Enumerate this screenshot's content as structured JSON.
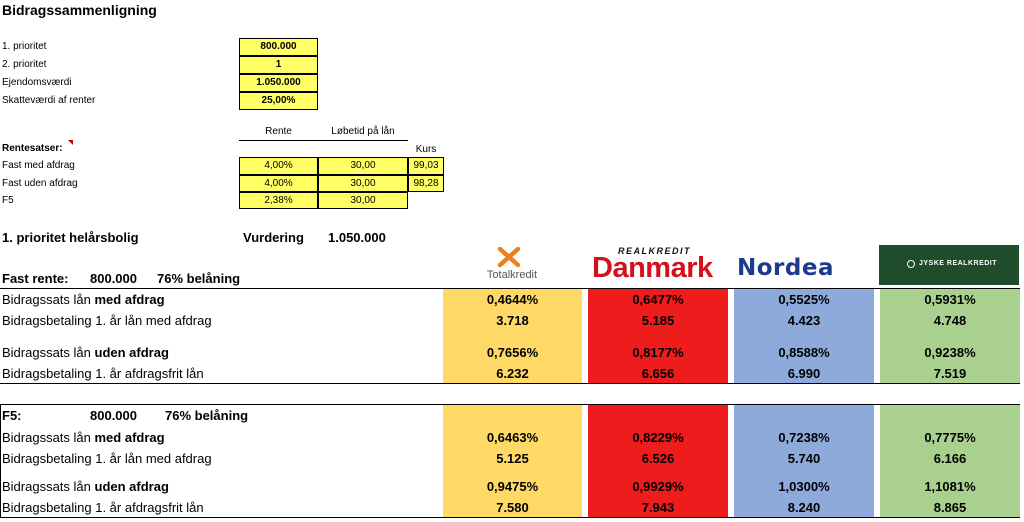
{
  "title": "Bidragssammenligning",
  "inputs": [
    {
      "label": "1. prioritet",
      "value": "800.000"
    },
    {
      "label": "2. prioritet",
      "value": "1"
    },
    {
      "label": "Ejendomsværdi",
      "value": "1.050.000"
    },
    {
      "label": "Skatteværdi af renter",
      "value": "25,00%"
    }
  ],
  "rates": {
    "headers": {
      "rente": "Rente",
      "lobetid": "Løbetid på lån",
      "kurs": "Kurs"
    },
    "label": "Rentesatser:",
    "rows": [
      {
        "label": "Fast med afdrag",
        "rente": "4,00%",
        "lobetid": "30,00",
        "kurs": "99,03"
      },
      {
        "label": "Fast uden afdrag",
        "rente": "4,00%",
        "lobetid": "30,00",
        "kurs": "98,28"
      },
      {
        "label": "F5",
        "rente": "2,38%",
        "lobetid": "30,00",
        "kurs": ""
      }
    ]
  },
  "property": {
    "label": "1. prioritet helårsbolig",
    "vurdering_label": "Vurdering",
    "vurdering_value": "1.050.000"
  },
  "banks": {
    "totalkredit": {
      "name": "Totalkredit",
      "color": "#ffd966"
    },
    "danmark": {
      "top": "REALKREDIT",
      "name": "Danmark",
      "color": "#ee1c1c"
    },
    "nordea": {
      "name": "Nordea",
      "color": "#8eaadb"
    },
    "jyske": {
      "name": "JYSKE REALKREDIT",
      "color": "#a9d08e"
    }
  },
  "fast": {
    "label": "Fast rente:",
    "amount": "800.000",
    "belaning": "76% belåning",
    "rows": [
      {
        "pre": "Bidragssats lån ",
        "bold": "med afdrag",
        "post": "",
        "values": [
          "0,4644%",
          "0,6477%",
          "0,5525%",
          "0,5931%"
        ]
      },
      {
        "pre": "Bidragsbetaling 1. år lån med afdrag",
        "bold": "",
        "post": "",
        "values": [
          "3.718",
          "5.185",
          "4.423",
          "4.748"
        ]
      },
      {
        "pre": "Bidragssats lån ",
        "bold": "uden afdrag",
        "post": "",
        "values": [
          "0,7656%",
          "0,8177%",
          "0,8588%",
          "0,9238%"
        ]
      },
      {
        "pre": "Bidragsbetaling 1. år afdragsfrit lån",
        "bold": "",
        "post": "",
        "values": [
          "6.232",
          "6.656",
          "6.990",
          "7.519"
        ]
      }
    ]
  },
  "f5": {
    "label": "F5:",
    "amount": "800.000",
    "belaning": "76% belåning",
    "rows": [
      {
        "pre": "Bidragssats lån ",
        "bold": "med afdrag",
        "post": "",
        "values": [
          "0,6463%",
          "0,8229%",
          "0,7238%",
          "0,7775%"
        ]
      },
      {
        "pre": "Bidragsbetaling 1. år lån med afdrag",
        "bold": "",
        "post": "",
        "values": [
          "5.125",
          "6.526",
          "5.740",
          "6.166"
        ]
      },
      {
        "pre": "Bidragssats lån ",
        "bold": "uden afdrag",
        "post": "",
        "values": [
          "0,9475%",
          "0,9929%",
          "1,0300%",
          "1,1081%"
        ]
      },
      {
        "pre": "Bidragsbetaling 1. år afdragsfrit lån",
        "bold": "",
        "post": "",
        "values": [
          "7.580",
          "7.943",
          "8.240",
          "8.865"
        ]
      }
    ]
  }
}
